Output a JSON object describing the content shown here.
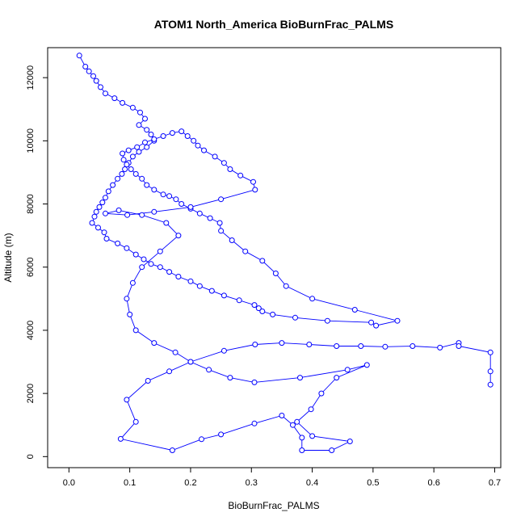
{
  "chart_data": {
    "type": "line",
    "title": "ATOM1 North_America BioBurnFrac_PALMS",
    "xlabel": "BioBurnFrac_PALMS",
    "ylabel": "Altitude (m)",
    "xlim": [
      -0.035,
      0.71
    ],
    "ylim": [
      -350,
      12950
    ],
    "xticks": [
      "0.0",
      "0.1",
      "0.2",
      "0.3",
      "0.4",
      "0.5",
      "0.6",
      "0.7"
    ],
    "yticks": [
      "0",
      "2000",
      "4000",
      "6000",
      "8000",
      "10000",
      "12000"
    ],
    "grid": false,
    "colors": {
      "series": "#0000ff",
      "axis": "#000000",
      "background": "#ffffff"
    },
    "series": [
      {
        "x": [
          0.017,
          0.027,
          0.033,
          0.04,
          0.045,
          0.052,
          0.06,
          0.075,
          0.088,
          0.105,
          0.117,
          0.125,
          0.115,
          0.128,
          0.135,
          0.14,
          0.128,
          0.115,
          0.105,
          0.098,
          0.092,
          0.087,
          0.08,
          0.072,
          0.065,
          0.06,
          0.055,
          0.05,
          0.045,
          0.042,
          0.038,
          0.048,
          0.058,
          0.062,
          0.08,
          0.095,
          0.11,
          0.123,
          0.135,
          0.15,
          0.165,
          0.18,
          0.2,
          0.215,
          0.235,
          0.255,
          0.28,
          0.305,
          0.312,
          0.318,
          0.335,
          0.372,
          0.425,
          0.497,
          0.505,
          0.54,
          0.47,
          0.4,
          0.357,
          0.34,
          0.318,
          0.29,
          0.268,
          0.25,
          0.248,
          0.232,
          0.215,
          0.2,
          0.185,
          0.176,
          0.165,
          0.155,
          0.14,
          0.128,
          0.12,
          0.11,
          0.102,
          0.095,
          0.09,
          0.088,
          0.098,
          0.112,
          0.125,
          0.14,
          0.155,
          0.17,
          0.185,
          0.195,
          0.205,
          0.212,
          0.222,
          0.24,
          0.255,
          0.265,
          0.282,
          0.303,
          0.306,
          0.25,
          0.2,
          0.14,
          0.096,
          0.06,
          0.082,
          0.12,
          0.16,
          0.18,
          0.15,
          0.12,
          0.105,
          0.095,
          0.1,
          0.11,
          0.14,
          0.175,
          0.2,
          0.23,
          0.265,
          0.305,
          0.38,
          0.458,
          0.49,
          0.44,
          0.415,
          0.398,
          0.375,
          0.4,
          0.462,
          0.432,
          0.383,
          0.383,
          0.368,
          0.35,
          0.305,
          0.25,
          0.218,
          0.17,
          0.085,
          0.11,
          0.095,
          0.13,
          0.165,
          0.2,
          0.255,
          0.306,
          0.35,
          0.395,
          0.44,
          0.48,
          0.52,
          0.565,
          0.61,
          0.641,
          0.641,
          0.693,
          0.693,
          0.693
        ],
        "y": [
          12700,
          12350,
          12200,
          12050,
          11900,
          11700,
          11500,
          11350,
          11200,
          11050,
          10900,
          10700,
          10500,
          10350,
          10200,
          10000,
          9800,
          9650,
          9500,
          9300,
          9100,
          8950,
          8800,
          8600,
          8400,
          8200,
          8050,
          7900,
          7750,
          7600,
          7400,
          7250,
          7100,
          6900,
          6750,
          6600,
          6400,
          6250,
          6100,
          6000,
          5850,
          5700,
          5550,
          5400,
          5250,
          5100,
          4950,
          4800,
          4700,
          4600,
          4500,
          4400,
          4300,
          4250,
          4150,
          4300,
          4650,
          5000,
          5400,
          5800,
          6200,
          6500,
          6850,
          7150,
          7400,
          7550,
          7700,
          7850,
          8000,
          8150,
          8250,
          8300,
          8450,
          8600,
          8800,
          8950,
          9100,
          9250,
          9400,
          9600,
          9700,
          9800,
          9950,
          10050,
          10150,
          10250,
          10300,
          10150,
          10000,
          9850,
          9700,
          9500,
          9300,
          9100,
          8900,
          8700,
          8450,
          8150,
          7900,
          7750,
          7650,
          7700,
          7800,
          7650,
          7400,
          7000,
          6500,
          6000,
          5500,
          5000,
          4500,
          4000,
          3600,
          3300,
          3000,
          2750,
          2500,
          2350,
          2500,
          2750,
          2900,
          2500,
          2000,
          1500,
          1100,
          650,
          480,
          200,
          200,
          600,
          1000,
          1300,
          1050,
          700,
          550,
          200,
          560,
          1100,
          1800,
          2400,
          2700,
          3000,
          3350,
          3550,
          3600,
          3550,
          3500,
          3500,
          3480,
          3500,
          3450,
          3600,
          3500,
          3300,
          2700,
          2280
        ]
      }
    ]
  }
}
